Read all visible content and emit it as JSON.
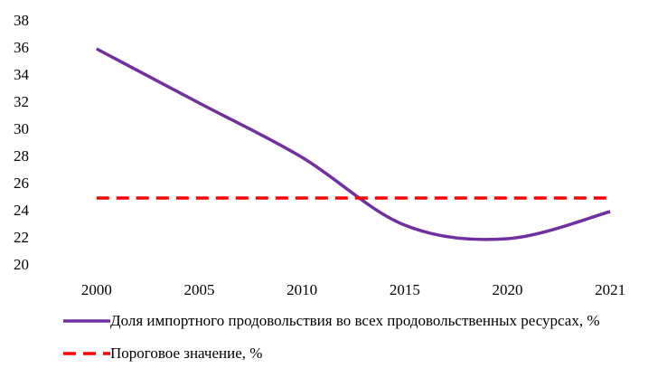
{
  "chart_data": {
    "type": "line",
    "categories": [
      "2000",
      "2005",
      "2010",
      "2015",
      "2020",
      "2021"
    ],
    "series": [
      {
        "name": "Доля импортного продовольствия во всех продовольственных ресурсах, %",
        "color": "#7030a0",
        "dashed": false,
        "values": [
          36,
          32,
          28,
          23,
          22,
          24
        ]
      },
      {
        "name": "Пороговое значение, %",
        "color": "#ff0000",
        "dashed": true,
        "values": [
          25,
          25,
          25,
          25,
          25,
          25
        ]
      }
    ],
    "ylim": [
      20,
      38
    ],
    "yticks": [
      20,
      22,
      24,
      26,
      28,
      30,
      32,
      34,
      36,
      38
    ],
    "grid": false
  }
}
